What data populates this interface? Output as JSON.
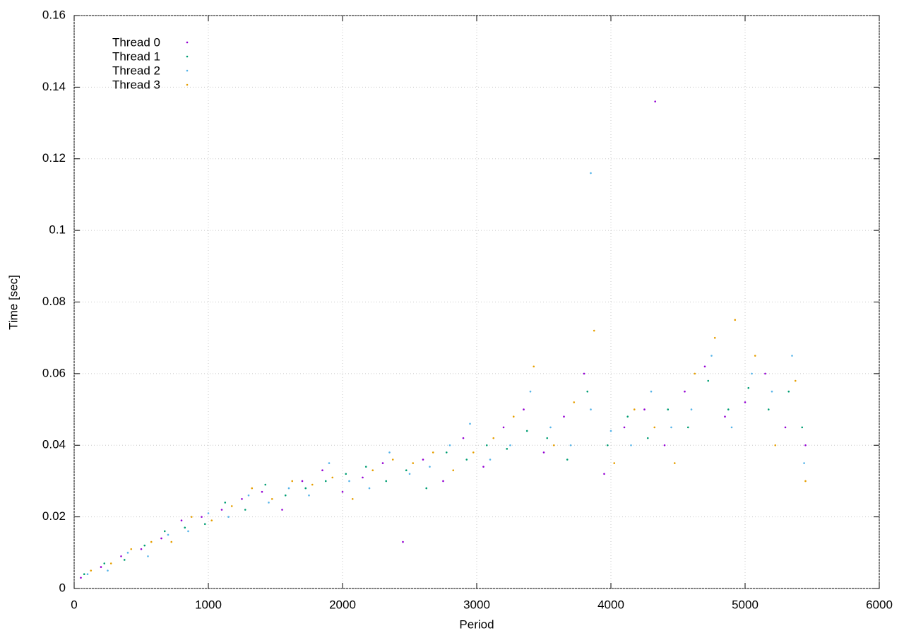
{
  "chart_data": {
    "type": "scatter",
    "x_label": "Period",
    "y_label": "Time [sec]",
    "xlim": [
      0,
      6000
    ],
    "xticks": [
      0,
      1000,
      2000,
      3000,
      4000,
      5000,
      6000
    ],
    "ylim": [
      0,
      0.16
    ],
    "yticks": [
      0,
      0.02,
      0.04,
      0.06,
      0.08,
      0.1,
      0.12,
      0.14,
      0.16
    ],
    "grid": true,
    "legend": "top-left",
    "series": [
      {
        "name": "Thread 0",
        "color": "#9400d3",
        "x": [
          50,
          200,
          350,
          500,
          650,
          800,
          950,
          1100,
          1250,
          1400,
          1550,
          1700,
          1850,
          2000,
          2150,
          2300,
          2450,
          2600,
          2750,
          2900,
          3050,
          3200,
          3350,
          3500,
          3650,
          3800,
          3950,
          4100,
          4250,
          4400,
          4550,
          4700,
          4850,
          5000,
          5150,
          5300,
          5450,
          4330
        ],
        "values": [
          0.003,
          0.006,
          0.009,
          0.011,
          0.014,
          0.019,
          0.02,
          0.022,
          0.025,
          0.027,
          0.022,
          0.03,
          0.033,
          0.027,
          0.031,
          0.035,
          0.013,
          0.036,
          0.03,
          0.042,
          0.034,
          0.045,
          0.05,
          0.038,
          0.048,
          0.06,
          0.032,
          0.045,
          0.05,
          0.04,
          0.055,
          0.062,
          0.048,
          0.052,
          0.06,
          0.045,
          0.04,
          0.136
        ]
      },
      {
        "name": "Thread 1",
        "color": "#009e73",
        "x": [
          75,
          225,
          375,
          525,
          675,
          825,
          975,
          1125,
          1275,
          1425,
          1575,
          1725,
          1875,
          2025,
          2175,
          2325,
          2475,
          2625,
          2775,
          2925,
          3075,
          3225,
          3375,
          3525,
          3675,
          3825,
          3975,
          4125,
          4275,
          4425,
          4575,
          4725,
          4875,
          5025,
          5175,
          5325,
          5425
        ],
        "values": [
          0.004,
          0.007,
          0.008,
          0.012,
          0.016,
          0.017,
          0.018,
          0.024,
          0.022,
          0.029,
          0.026,
          0.028,
          0.03,
          0.032,
          0.034,
          0.03,
          0.033,
          0.028,
          0.038,
          0.036,
          0.04,
          0.039,
          0.044,
          0.042,
          0.036,
          0.055,
          0.04,
          0.048,
          0.042,
          0.05,
          0.045,
          0.058,
          0.05,
          0.056,
          0.05,
          0.055,
          0.045
        ]
      },
      {
        "name": "Thread 2",
        "color": "#56b4e9",
        "x": [
          100,
          250,
          400,
          550,
          700,
          850,
          1000,
          1150,
          1300,
          1450,
          1600,
          1750,
          1900,
          2050,
          2200,
          2350,
          2500,
          2650,
          2800,
          2950,
          3100,
          3250,
          3400,
          3550,
          3700,
          3850,
          4000,
          4150,
          4300,
          4450,
          4600,
          4750,
          4900,
          5050,
          5200,
          5350,
          5440,
          3850
        ],
        "values": [
          0.004,
          0.005,
          0.01,
          0.009,
          0.015,
          0.016,
          0.021,
          0.02,
          0.026,
          0.024,
          0.028,
          0.026,
          0.035,
          0.03,
          0.028,
          0.038,
          0.032,
          0.034,
          0.04,
          0.046,
          0.036,
          0.04,
          0.055,
          0.045,
          0.04,
          0.05,
          0.044,
          0.04,
          0.055,
          0.045,
          0.05,
          0.065,
          0.045,
          0.06,
          0.055,
          0.065,
          0.035,
          0.116
        ]
      },
      {
        "name": "Thread 3",
        "color": "#e69f00",
        "x": [
          125,
          275,
          425,
          575,
          725,
          875,
          1025,
          1175,
          1325,
          1475,
          1625,
          1775,
          1925,
          2075,
          2225,
          2375,
          2525,
          2675,
          2825,
          2975,
          3125,
          3275,
          3425,
          3575,
          3725,
          3875,
          4025,
          4175,
          4325,
          4475,
          4625,
          4775,
          4925,
          5075,
          5225,
          5375,
          5450
        ],
        "values": [
          0.005,
          0.007,
          0.011,
          0.013,
          0.013,
          0.02,
          0.019,
          0.023,
          0.028,
          0.025,
          0.03,
          0.029,
          0.031,
          0.025,
          0.033,
          0.036,
          0.035,
          0.038,
          0.033,
          0.038,
          0.042,
          0.048,
          0.062,
          0.04,
          0.052,
          0.072,
          0.035,
          0.05,
          0.045,
          0.035,
          0.06,
          0.07,
          0.075,
          0.065,
          0.04,
          0.058,
          0.03
        ]
      }
    ]
  }
}
